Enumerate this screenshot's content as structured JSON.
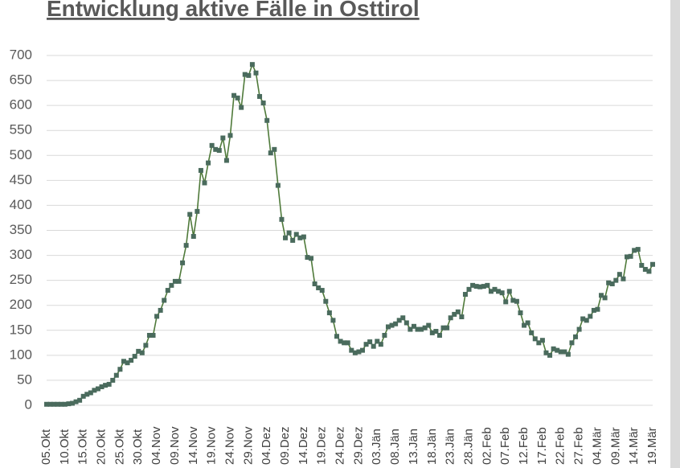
{
  "chart_data": {
    "type": "line",
    "title": "Entwicklung aktive Fälle in Osttirol",
    "categories": [
      "05.Okt",
      null,
      null,
      null,
      null,
      "10.Okt",
      null,
      null,
      null,
      null,
      "15.Okt",
      null,
      null,
      null,
      null,
      "20.Okt",
      null,
      null,
      null,
      null,
      "25.Okt",
      null,
      null,
      null,
      null,
      "30.Okt",
      null,
      null,
      null,
      null,
      "04.Nov",
      null,
      null,
      null,
      null,
      "09.Nov",
      null,
      null,
      null,
      null,
      "14.Nov",
      null,
      null,
      null,
      null,
      "19.Nov",
      null,
      null,
      null,
      null,
      "24.Nov",
      null,
      null,
      null,
      null,
      "29.Nov",
      null,
      null,
      null,
      null,
      "04.Dez",
      null,
      null,
      null,
      null,
      "09.Dez",
      null,
      null,
      null,
      null,
      "14.Dez",
      null,
      null,
      null,
      null,
      "19.Dez",
      null,
      null,
      null,
      null,
      "24.Dez",
      null,
      null,
      null,
      null,
      "29.Dez",
      null,
      null,
      null,
      null,
      "03.Jän",
      null,
      null,
      null,
      null,
      "08.Jän",
      null,
      null,
      null,
      null,
      "13.Jän",
      null,
      null,
      null,
      null,
      "18.Jän",
      null,
      null,
      null,
      null,
      "23.Jän",
      null,
      null,
      null,
      null,
      "28.Jän",
      null,
      null,
      null,
      null,
      "02.Feb",
      null,
      null,
      null,
      null,
      "07.Feb",
      null,
      null,
      null,
      null,
      "12.Feb",
      null,
      null,
      null,
      null,
      "17.Feb",
      null,
      null,
      null,
      null,
      "22.Feb",
      null,
      null,
      null,
      null,
      "27.Feb",
      null,
      null,
      null,
      null,
      "04.Mär",
      null,
      null,
      null,
      null,
      "09.Mär",
      null,
      null,
      null,
      null,
      "14.Mär",
      null,
      null,
      null,
      null,
      "19.Mär"
    ],
    "values": [
      2,
      2,
      2,
      2,
      2,
      2,
      3,
      4,
      7,
      10,
      18,
      22,
      25,
      30,
      33,
      37,
      40,
      42,
      50,
      60,
      72,
      88,
      85,
      90,
      98,
      108,
      105,
      120,
      140,
      140,
      178,
      190,
      210,
      230,
      240,
      248,
      248,
      285,
      320,
      382,
      338,
      388,
      470,
      445,
      485,
      520,
      512,
      510,
      535,
      490,
      540,
      620,
      615,
      596,
      662,
      660,
      682,
      665,
      618,
      605,
      570,
      505,
      512,
      440,
      372,
      335,
      345,
      330,
      342,
      335,
      337,
      296,
      294,
      243,
      235,
      230,
      208,
      185,
      170,
      138,
      128,
      125,
      125,
      110,
      105,
      107,
      110,
      122,
      127,
      118,
      128,
      122,
      140,
      157,
      160,
      163,
      170,
      175,
      165,
      152,
      158,
      152,
      152,
      155,
      160,
      145,
      148,
      140,
      155,
      155,
      175,
      182,
      187,
      177,
      222,
      232,
      240,
      238,
      237,
      238,
      240,
      228,
      232,
      228,
      225,
      207,
      228,
      210,
      208,
      185,
      160,
      165,
      145,
      133,
      125,
      130,
      105,
      100,
      113,
      110,
      107,
      107,
      102,
      125,
      137,
      152,
      173,
      170,
      178,
      190,
      192,
      220,
      215,
      245,
      243,
      250,
      262,
      253,
      297,
      298,
      310,
      312,
      280,
      272,
      268,
      282
    ],
    "color": "#4f7a3a",
    "marker_color": "#4a6b5d",
    "ylim": [
      0,
      700
    ],
    "yticks": [
      0,
      50,
      100,
      150,
      200,
      250,
      300,
      350,
      400,
      450,
      500,
      550,
      600,
      650,
      700
    ],
    "grid": true
  }
}
